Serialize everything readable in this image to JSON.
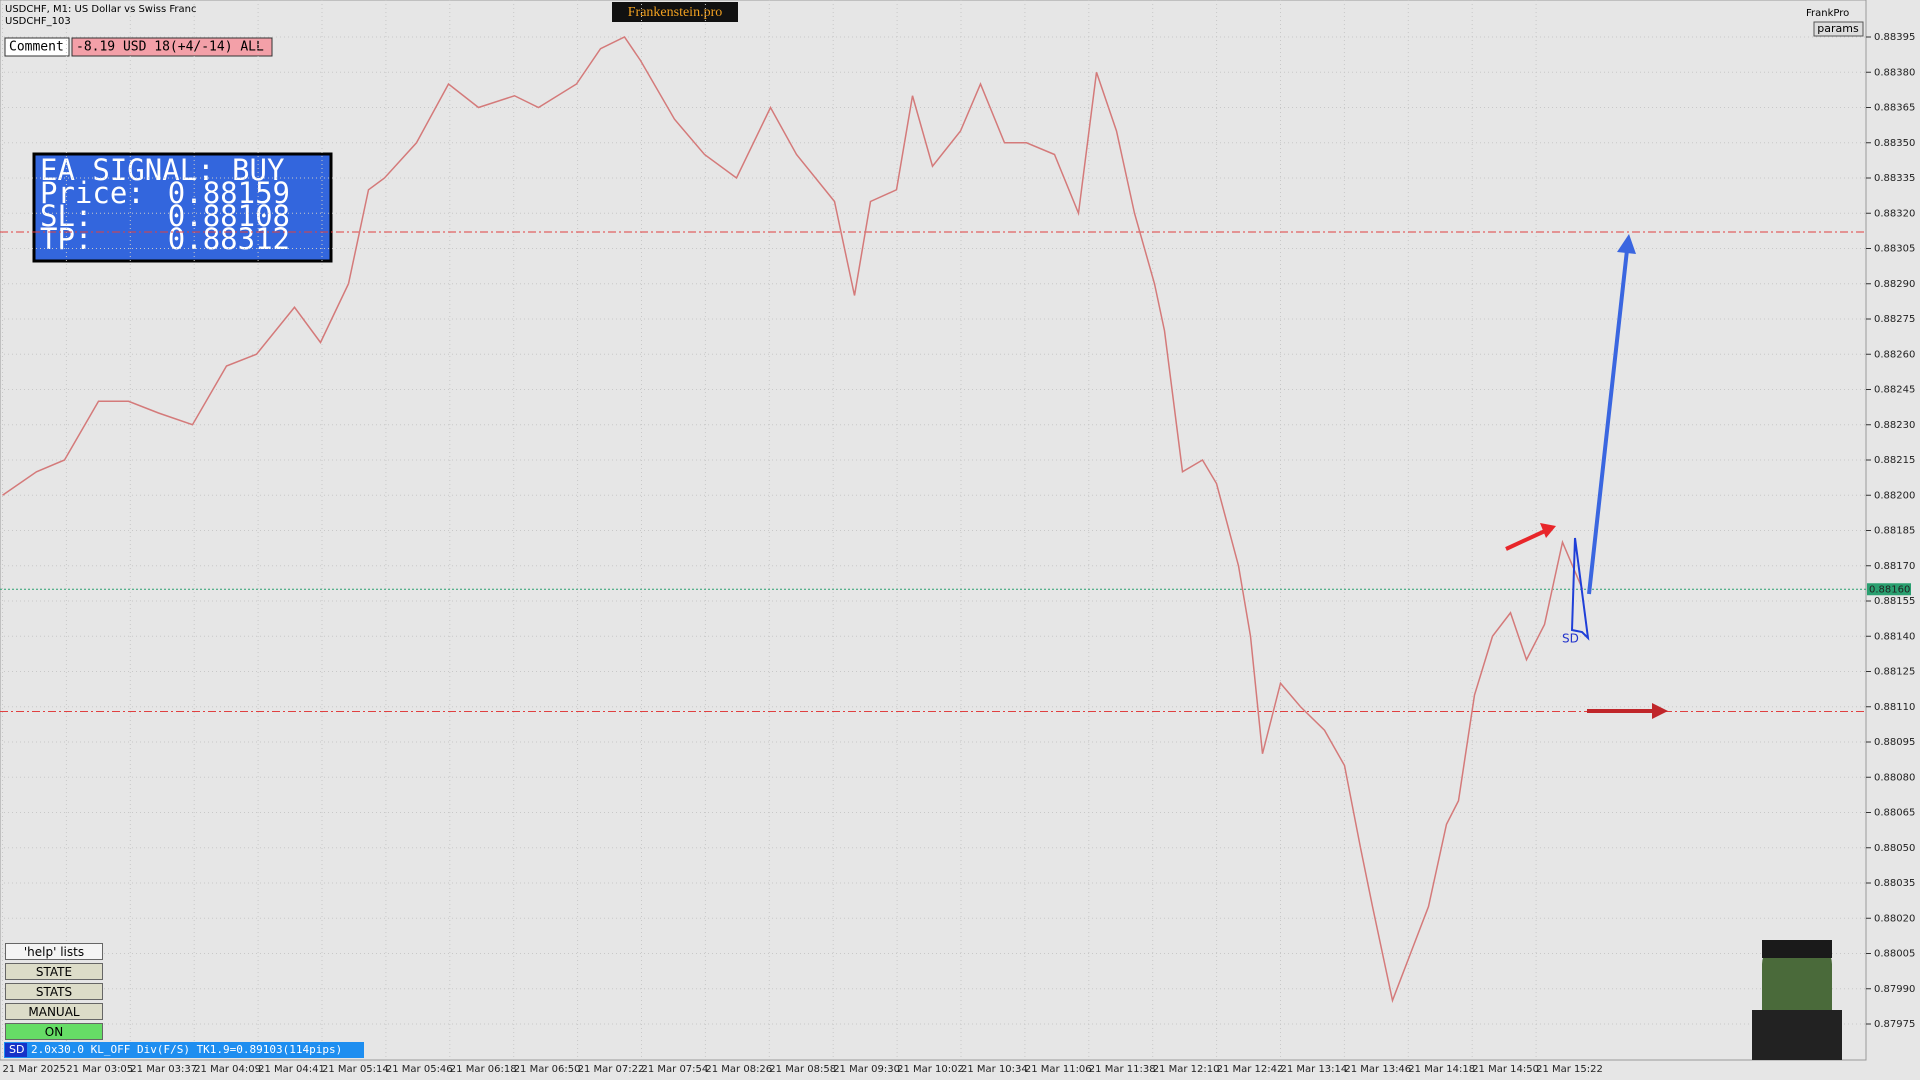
{
  "header": {
    "symbol": "USDCHF, M1:  US Dollar vs Swiss Franc",
    "account": "USDCHF_103",
    "brand": "Frankenstein.pro",
    "user": "FrankPro",
    "params": "params"
  },
  "comment": {
    "label": "Comment",
    "text": "-8.19 USD 18(+4/-14) ALL"
  },
  "ea_signal": {
    "title": "EA SIGNAL: BUY",
    "price_label": "Price:",
    "price": 0.88159,
    "sl_label": "SL:",
    "sl": 0.88108,
    "tp_label": "TP:",
    "tp": 0.88312
  },
  "price_axis": {
    "lim": [
      0.8797,
      0.884
    ],
    "ticks": [
      0.88395,
      {
        "value": 0.8838,
        "label": "0.88380"
      },
      0.88365,
      {
        "value": 0.8835,
        "label": "0.88350"
      },
      0.88335,
      {
        "value": 0.8832,
        "label": "0.88320"
      },
      0.88305,
      {
        "value": 0.8829,
        "label": "0.88290"
      },
      0.88275,
      {
        "value": 0.8826,
        "label": "0.88260"
      },
      0.88245,
      {
        "value": 0.8823,
        "label": "0.88230"
      },
      0.88215,
      {
        "value": 0.882,
        "label": "0.88200"
      },
      0.88185,
      {
        "value": 0.8817,
        "label": "0.88170"
      },
      0.88155,
      {
        "value": 0.8814,
        "label": "0.88140"
      },
      0.88125,
      {
        "value": 0.8811,
        "label": "0.88110"
      },
      0.88095,
      {
        "value": 0.8808,
        "label": "0.88080"
      },
      0.88065,
      {
        "value": 0.8805,
        "label": "0.88050"
      },
      0.88035,
      {
        "value": 0.8802,
        "label": "0.88020"
      },
      0.88005,
      {
        "value": 0.8799,
        "label": "0.87990"
      },
      0.87975
    ],
    "current": {
      "value": 0.8816,
      "label": "0.88160"
    }
  },
  "time_axis": {
    "labels": [
      "21 Mar 2025",
      "21 Mar 03:05",
      "21 Mar 03:37",
      "21 Mar 04:09",
      "21 Mar 04:41",
      "21 Mar 05:14",
      "21 Mar 05:46",
      "21 Mar 06:18",
      "21 Mar 06:50",
      "21 Mar 07:22",
      "21 Mar 07:54",
      "21 Mar 08:26",
      "21 Mar 08:58",
      "21 Mar 09:30",
      "21 Mar 10:02",
      "21 Mar 10:34",
      "21 Mar 11:06",
      "21 Mar 11:38",
      "21 Mar 12:10",
      "21 Mar 12:42",
      "21 Mar 13:14",
      "21 Mar 13:46",
      "21 Mar 14:18",
      "21 Mar 14:50",
      "21 Mar 15:22"
    ]
  },
  "price_path": {
    "t": [
      0,
      17,
      31,
      48,
      63,
      78,
      95,
      112,
      127,
      146,
      159,
      173,
      183,
      191,
      207,
      223,
      238,
      256,
      268,
      287,
      299,
      311,
      319,
      336,
      351,
      367,
      384,
      397,
      416,
      426,
      434,
      447,
      455,
      465,
      479,
      489,
      501,
      512,
      526,
      538,
      547,
      557,
      566,
      576,
      581,
      590,
      600,
      607,
      618,
      624,
      630,
      639,
      649,
      661,
      671,
      679,
      685,
      695,
      704,
      713,
      722,
      728,
      736,
      745,
      754,
      762,
      771,
      780,
      790
    ],
    "prices": [
      0.882,
      0.8821,
      0.88215,
      0.8824,
      0.8824,
      0.88235,
      0.8823,
      0.88255,
      0.8826,
      0.8828,
      0.88265,
      0.8829,
      0.8833,
      0.88335,
      0.8835,
      0.88375,
      0.88365,
      0.8837,
      0.88365,
      0.88375,
      0.8839,
      0.88395,
      0.88385,
      0.8836,
      0.88345,
      0.88335,
      0.88365,
      0.88345,
      0.88325,
      0.88285,
      0.88325,
      0.8833,
      0.8837,
      0.8834,
      0.88355,
      0.88375,
      0.8835,
      0.8835,
      0.88345,
      0.8832,
      0.8838,
      0.88355,
      0.8832,
      0.8829,
      0.8827,
      0.8821,
      0.88215,
      0.88205,
      0.8817,
      0.8814,
      0.8809,
      0.8812,
      0.8811,
      0.881,
      0.88085,
      0.8805,
      0.88025,
      0.87985,
      0.88005,
      0.88025,
      0.8806,
      0.8807,
      0.88115,
      0.8814,
      0.8815,
      0.8813,
      0.88145,
      0.8818,
      0.8816
    ]
  },
  "chart_marker": "SD",
  "buttons": [
    "'help' lists cmds",
    "STATE",
    "STATS",
    "MANUAL",
    "ON"
  ],
  "status": {
    "tag": "SD",
    "text": "2.0x30.0 KL_OFF Div(F/S) TK1.9=0.89103(114pips)"
  }
}
